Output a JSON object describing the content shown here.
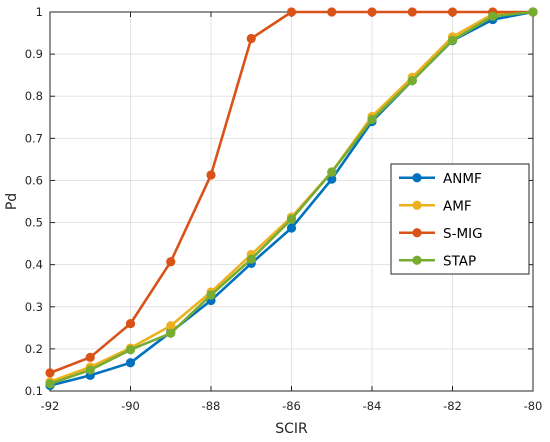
{
  "chart_data": {
    "type": "line",
    "title": "",
    "xlabel": "SCIR",
    "ylabel": "Pd",
    "xlim": [
      -92,
      -80
    ],
    "ylim": [
      0.1,
      1
    ],
    "x": [
      -92,
      -91,
      -90,
      -89,
      -88,
      -87,
      -86,
      -85,
      -84,
      -83,
      -82,
      -81,
      -80
    ],
    "xticks": [
      -92,
      -90,
      -88,
      -86,
      -84,
      -82,
      -80
    ],
    "yticks": [
      0.1,
      0.2,
      0.3,
      0.4,
      0.5,
      0.6,
      0.7,
      0.8,
      0.9,
      1
    ],
    "xtick_labels": [
      "-92",
      "-90",
      "-88",
      "-86",
      "-84",
      "-82",
      "-80"
    ],
    "ytick_labels": [
      "0.1",
      "0.2",
      "0.3",
      "0.4",
      "0.5",
      "0.6",
      "0.7",
      "0.8",
      "0.9",
      "1"
    ],
    "grid": true,
    "legend_position": "right",
    "series": [
      {
        "name": "ANMF",
        "color": "#0072BD",
        "values": [
          0.113,
          0.137,
          0.167,
          0.24,
          0.315,
          0.403,
          0.487,
          0.603,
          0.74,
          0.837,
          0.932,
          0.982,
          1.0
        ]
      },
      {
        "name": "AMF",
        "color": "#EDB120",
        "values": [
          0.122,
          0.157,
          0.202,
          0.255,
          0.335,
          0.424,
          0.513,
          0.62,
          0.752,
          0.845,
          0.941,
          0.995,
          1.0
        ]
      },
      {
        "name": "S-MIG",
        "color": "#D95319",
        "values": [
          0.143,
          0.18,
          0.26,
          0.407,
          0.613,
          0.937,
          1.0,
          1.0,
          1.0,
          1.0,
          1.0,
          1.0,
          1.0
        ]
      },
      {
        "name": "STAP",
        "color": "#77AC30",
        "values": [
          0.117,
          0.15,
          0.198,
          0.237,
          0.328,
          0.413,
          0.508,
          0.62,
          0.745,
          0.837,
          0.933,
          0.99,
          1.0
        ]
      }
    ]
  }
}
